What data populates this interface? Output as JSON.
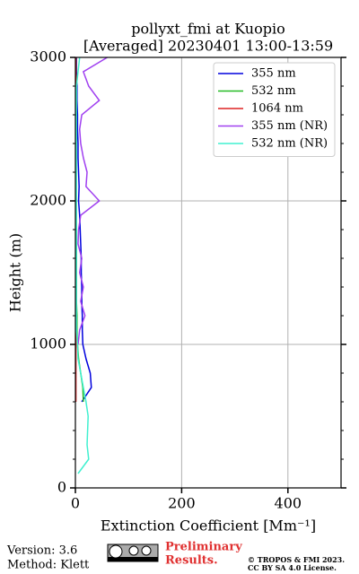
{
  "chart_data": {
    "type": "line",
    "orientation": "vertical-profile",
    "title": "pollyxt_fmi at Kuopio",
    "subtitle": "[Averaged] 20230401 13:00-13:59",
    "x_label": "Extinction Coefficient [Mm⁻¹]",
    "y_label": "Height (m)",
    "xlim": [
      0,
      500
    ],
    "xticks": [
      0,
      200,
      400
    ],
    "ylim": [
      0,
      3000
    ],
    "yticks": [
      0,
      1000,
      2000,
      3000
    ],
    "y_minor_ticks": [
      200,
      400,
      600,
      800,
      1200,
      1400,
      1600,
      1800,
      2200,
      2400,
      2600,
      2800
    ],
    "grid": true,
    "legend": "upper right",
    "y": [
      100,
      200,
      300,
      400,
      500,
      600,
      700,
      800,
      900,
      1000,
      1100,
      1200,
      1300,
      1400,
      1500,
      1600,
      1700,
      1800,
      1900,
      2000,
      2100,
      2200,
      2300,
      2400,
      2500,
      2600,
      2700,
      2800,
      2900,
      3000
    ],
    "series": [
      {
        "name": "355 nm",
        "color": "#0000dd",
        "values": [
          null,
          null,
          null,
          null,
          null,
          12,
          30,
          28,
          20,
          14,
          13,
          13,
          12,
          12,
          11,
          11,
          10,
          9,
          8,
          6,
          7,
          6,
          5,
          5,
          4,
          4,
          3,
          3,
          2,
          2
        ]
      },
      {
        "name": "532 nm",
        "color": "#22bb22",
        "values": [
          null,
          null,
          null,
          null,
          null,
          15,
          14,
          10,
          6,
          4,
          3,
          3,
          2,
          2,
          2,
          2,
          2,
          2,
          1,
          1,
          1,
          1,
          1,
          1,
          1,
          1,
          1,
          1,
          1,
          1
        ]
      },
      {
        "name": "1064 nm",
        "color": "#dd2222",
        "values": [
          null,
          null,
          null,
          null,
          null,
          1,
          1,
          1,
          1,
          1,
          1,
          1,
          1,
          1,
          1,
          1,
          1,
          1,
          1,
          1,
          1,
          1,
          1,
          1,
          1,
          1,
          1,
          1,
          1,
          1
        ]
      },
      {
        "name": "355 nm (NR)",
        "color": "#a040f0",
        "values": [
          null,
          null,
          null,
          null,
          null,
          null,
          null,
          null,
          null,
          5,
          8,
          18,
          10,
          15,
          8,
          12,
          5,
          6,
          10,
          45,
          20,
          22,
          15,
          10,
          8,
          12,
          45,
          25,
          15,
          60
        ]
      },
      {
        "name": "532 nm (NR)",
        "color": "#40f0d0",
        "values": [
          5,
          25,
          22,
          23,
          24,
          20,
          15,
          10,
          5,
          4,
          2,
          2,
          2,
          2,
          2,
          2,
          2,
          2,
          2,
          2,
          2,
          2,
          2,
          2,
          2,
          2,
          2,
          2,
          5,
          8
        ]
      }
    ]
  },
  "footer": {
    "version": "Version: 3.6",
    "method": "Method: Klett",
    "preliminary": [
      "Preliminary",
      "Results."
    ],
    "copyright": [
      "© TROPOS & FMI 2023.",
      "CC BY SA 4.0 License."
    ]
  }
}
